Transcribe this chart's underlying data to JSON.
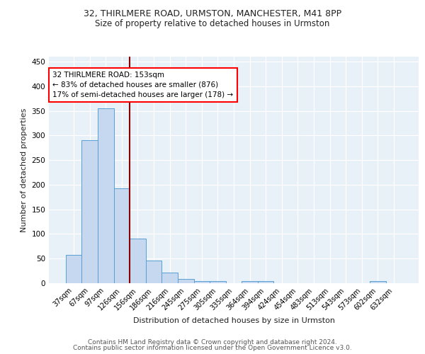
{
  "title1": "32, THIRLMERE ROAD, URMSTON, MANCHESTER, M41 8PP",
  "title2": "Size of property relative to detached houses in Urmston",
  "xlabel": "Distribution of detached houses by size in Urmston",
  "ylabel": "Number of detached properties",
  "footer1": "Contains HM Land Registry data © Crown copyright and database right 2024.",
  "footer2": "Contains public sector information licensed under the Open Government Licence v3.0.",
  "categories": [
    "37sqm",
    "67sqm",
    "97sqm",
    "126sqm",
    "156sqm",
    "186sqm",
    "216sqm",
    "245sqm",
    "275sqm",
    "305sqm",
    "335sqm",
    "364sqm",
    "394sqm",
    "424sqm",
    "454sqm",
    "483sqm",
    "513sqm",
    "543sqm",
    "573sqm",
    "602sqm",
    "632sqm"
  ],
  "values": [
    58,
    290,
    355,
    192,
    90,
    46,
    21,
    9,
    4,
    5,
    0,
    4,
    5,
    0,
    0,
    0,
    0,
    0,
    0,
    4,
    0
  ],
  "bar_color": "#c5d8ef",
  "bar_edge_color": "#5a9fd4",
  "background_color": "#e8f0f8",
  "annotation_line1": "32 THIRLMERE ROAD: 153sqm",
  "annotation_line2": "← 83% of detached houses are smaller (876)",
  "annotation_line3": "17% of semi-detached houses are larger (178) →",
  "vline_color": "#8b0000",
  "vline_x": 3.5,
  "ylim": [
    0,
    460
  ],
  "yticks": [
    0,
    50,
    100,
    150,
    200,
    250,
    300,
    350,
    400,
    450
  ],
  "title1_fontsize": 9,
  "title2_fontsize": 8.5,
  "axis_fontsize": 8,
  "tick_fontsize": 7,
  "footer_fontsize": 6.5,
  "annotation_fontsize": 7.5
}
